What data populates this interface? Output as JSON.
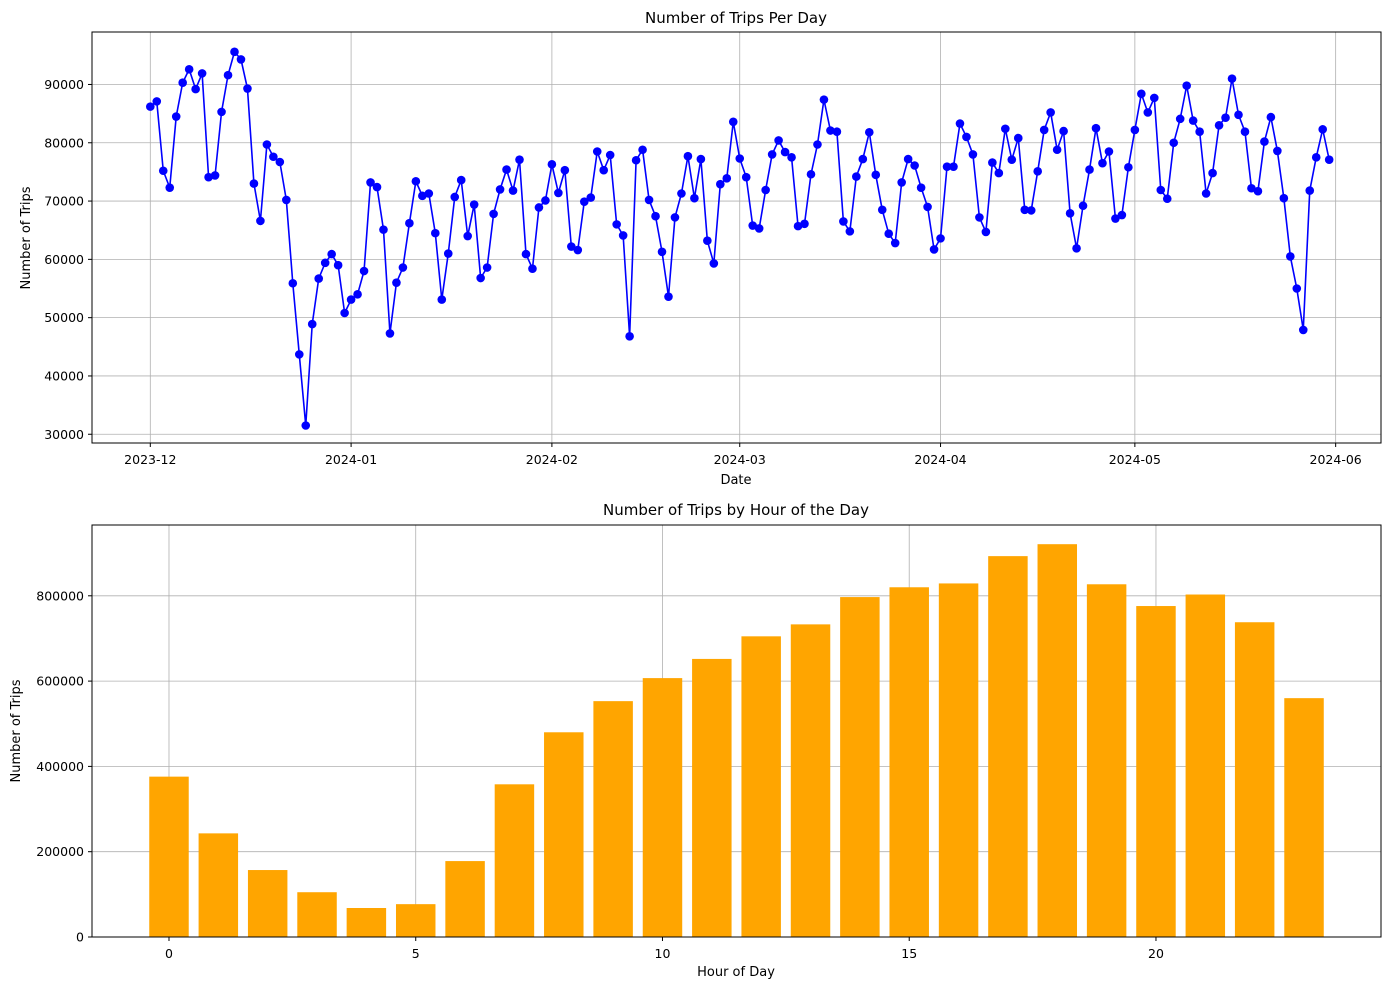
{
  "chart_data": [
    {
      "type": "line",
      "title": "Number of Trips Per Day",
      "xlabel": "Date",
      "ylabel": "Number of Trips",
      "grid": true,
      "color": "#0000ff",
      "marker": "circle",
      "x_ticks": [
        {
          "date": "2023-12-01",
          "label": "2023-12"
        },
        {
          "date": "2024-01-01",
          "label": "2024-01"
        },
        {
          "date": "2024-02-01",
          "label": "2024-02"
        },
        {
          "date": "2024-03-01",
          "label": "2024-03"
        },
        {
          "date": "2024-04-01",
          "label": "2024-04"
        },
        {
          "date": "2024-05-01",
          "label": "2024-05"
        },
        {
          "date": "2024-06-01",
          "label": "2024-06"
        }
      ],
      "xlim": [
        "2023-11-22",
        "2024-06-08"
      ],
      "ylim": [
        28500,
        99000
      ],
      "y_ticks": [
        30000,
        40000,
        50000,
        60000,
        70000,
        80000,
        90000
      ],
      "start_date": "2023-12-01",
      "values": [
        86200,
        87100,
        75200,
        72300,
        84500,
        90300,
        92600,
        89200,
        91900,
        74100,
        74400,
        85300,
        91600,
        95600,
        94300,
        89300,
        73000,
        66600,
        79700,
        77600,
        76700,
        70200,
        55900,
        43700,
        31500,
        48900,
        56700,
        59400,
        60900,
        59000,
        50800,
        53100,
        54000,
        58000,
        73200,
        72400,
        65100,
        47300,
        56000,
        58600,
        66200,
        73400,
        70900,
        71300,
        64500,
        53100,
        61000,
        70700,
        73600,
        64000,
        69400,
        56800,
        58600,
        67800,
        72000,
        75400,
        71800,
        77100,
        60900,
        58400,
        68900,
        70100,
        76300,
        71400,
        75300,
        62200,
        61600,
        69900,
        70600,
        78500,
        75300,
        77900,
        66000,
        64100,
        46800,
        77000,
        78800,
        70200,
        67400,
        61300,
        53600,
        67200,
        71300,
        77700,
        70500,
        77200,
        63200,
        59300,
        72900,
        73900,
        83600,
        77300,
        74100,
        65800,
        65300,
        71900,
        78000,
        80400,
        78400,
        77500,
        65700,
        66100,
        74600,
        79700,
        87400,
        82100,
        81900,
        66500,
        64800,
        74200,
        77200,
        81800,
        74500,
        68500,
        64400,
        62800,
        73200,
        77200,
        76100,
        72300,
        69000,
        61700,
        63600,
        75900,
        75900,
        83300,
        81000,
        78000,
        67200,
        64700,
        76600,
        74800,
        82400,
        77100,
        80800,
        68500,
        68400,
        75100,
        82200,
        85200,
        78800,
        82000,
        67900,
        61900,
        69200,
        75400,
        82500,
        76500,
        78500,
        67000,
        67600,
        75800,
        82200,
        88400,
        85200,
        87700,
        71900,
        70400,
        80000,
        84100,
        89800,
        83800,
        81900,
        71300,
        74800,
        83000,
        84300,
        91000,
        84800,
        81900,
        72200,
        71700,
        80200,
        84400,
        78600,
        70500,
        60500,
        55000,
        47900,
        71800,
        77500,
        82300,
        77100
      ]
    },
    {
      "type": "bar",
      "title": "Number of Trips by Hour of the Day",
      "xlabel": "Hour of Day",
      "ylabel": "Number of Trips",
      "grid": true,
      "color": "#ffa500",
      "categories": [
        0,
        1,
        2,
        3,
        4,
        5,
        6,
        7,
        8,
        9,
        10,
        11,
        12,
        13,
        14,
        15,
        16,
        17,
        18,
        19,
        20,
        21,
        22,
        23
      ],
      "values": [
        376000,
        243000,
        157000,
        105000,
        68000,
        77000,
        178000,
        358000,
        480000,
        553000,
        607000,
        652000,
        705000,
        733000,
        797000,
        820000,
        829000,
        893000,
        921000,
        827000,
        776000,
        803000,
        738000,
        560000
      ],
      "xlim": [
        -1.56,
        24.56
      ],
      "ylim": [
        0,
        966000
      ],
      "x_ticks": [
        0,
        5,
        10,
        15,
        20
      ],
      "y_ticks": [
        0,
        200000,
        400000,
        600000,
        800000
      ]
    }
  ]
}
